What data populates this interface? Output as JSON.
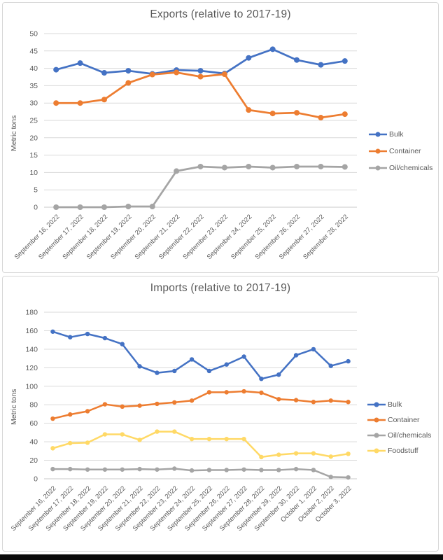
{
  "page": {
    "background_color": "#ffffff",
    "bottom_bar_color": "#0a0a0a",
    "frame_border_color": "#d7d7d7"
  },
  "style": {
    "title_color": "#595959",
    "tick_label_color": "#595959",
    "gridline_color": "#d9d9d9",
    "axis_line_color": "#c9c9c9"
  },
  "chart_data": [
    {
      "type": "line",
      "title": "Exports (relative to 2017-19)",
      "xlabel": "",
      "ylabel": "Metric tons",
      "ylim": [
        0,
        50
      ],
      "ytick_step": 5,
      "grid": true,
      "legend_position": "right",
      "categories": [
        "September 16, 2022",
        "September 17, 2022",
        "September 18, 2022",
        "September 19, 2022",
        "September 20, 2022",
        "September 21, 2022",
        "September 22, 2022",
        "September 23, 2022",
        "September 24, 2022",
        "September 25, 2022",
        "September 26, 2022",
        "September 27, 2022",
        "September 28, 2022"
      ],
      "series": [
        {
          "name": "Bulk",
          "color": "#4472C4",
          "values": [
            39.6,
            41.5,
            38.7,
            39.3,
            38.4,
            39.5,
            39.3,
            38.5,
            43.0,
            45.5,
            42.4,
            41.0,
            42.1
          ]
        },
        {
          "name": "Container",
          "color": "#ED7D31",
          "values": [
            30.0,
            30.0,
            31.0,
            35.8,
            38.2,
            38.8,
            37.6,
            38.3,
            28.0,
            27.0,
            27.2,
            25.8,
            26.8
          ]
        },
        {
          "name": "Oil/chemicals",
          "color": "#A5A5A5",
          "values": [
            0,
            0,
            0,
            0.2,
            0.2,
            10.4,
            11.7,
            11.4,
            11.7,
            11.4,
            11.7,
            11.7,
            11.6
          ]
        }
      ]
    },
    {
      "type": "line",
      "title": "Imports (relative to 2017-19)",
      "xlabel": "",
      "ylabel": "Metric tons",
      "ylim": [
        0,
        180
      ],
      "ytick_step": 20,
      "grid": true,
      "legend_position": "right",
      "categories": [
        "September 16, 2022",
        "September 17, 2022",
        "September 18, 2022",
        "September 19, 2022",
        "September 20, 2022",
        "September 21, 2022",
        "September 22, 2022",
        "September 23, 2022",
        "September 24, 2022",
        "September 25, 2022",
        "September 26, 2022",
        "September 27, 2022",
        "September 28, 2022",
        "September 29, 2022",
        "September 30, 2022",
        "October 1, 2022",
        "October 2, 2022",
        "October 3, 2022"
      ],
      "series": [
        {
          "name": "Bulk",
          "color": "#4472C4",
          "values": [
            159,
            153,
            156.5,
            152,
            145.5,
            121.5,
            114.5,
            116.5,
            129,
            116.5,
            123.5,
            132,
            108,
            112.5,
            133.5,
            140,
            122,
            127
          ]
        },
        {
          "name": "Container",
          "color": "#ED7D31",
          "values": [
            65,
            69.5,
            73,
            80.5,
            78,
            79,
            81,
            82.5,
            84.5,
            93.5,
            93.5,
            94.5,
            93,
            86,
            85,
            83,
            84.5,
            83
          ]
        },
        {
          "name": "Oil/chemicals",
          "color": "#A5A5A5",
          "values": [
            10.5,
            10.5,
            10,
            10,
            10,
            10.5,
            10,
            11,
            9,
            9.5,
            9.5,
            10,
            9.5,
            9.5,
            10.5,
            9.5,
            2,
            1.5
          ]
        },
        {
          "name": "Foodstuff",
          "color": "#FFD966",
          "values": [
            33,
            38.5,
            39,
            48,
            48,
            42,
            51,
            51,
            43,
            43,
            43,
            43,
            23.5,
            26,
            27.5,
            27.5,
            24,
            27
          ]
        }
      ]
    }
  ]
}
